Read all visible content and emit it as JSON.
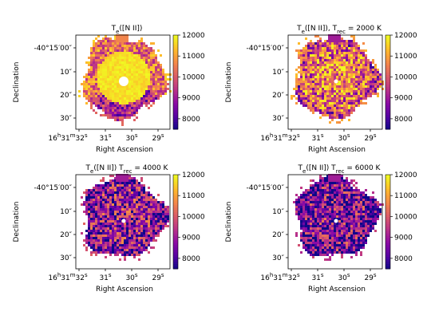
{
  "chart_data": [
    {
      "type": "heatmap",
      "title_main": "T",
      "title_sub": "e",
      "title_rest": "([N II])",
      "title_suffix": "",
      "xlabel": "Right Ascension",
      "ylabel": "Declination",
      "x_ticks": [
        {
          "h": "16",
          "m": "31",
          "s": "32"
        },
        {
          "s": "31"
        },
        {
          "s": "30"
        },
        {
          "s": "29"
        }
      ],
      "y_ticks": [
        "-40°15′00″",
        "10″",
        "20″",
        "30″"
      ],
      "colorbar": {
        "min": 7500,
        "max": 12000,
        "ticks": [
          8000,
          9000,
          10000,
          11000,
          12000
        ],
        "cmap": "plasma"
      },
      "mean_value": 11300
    },
    {
      "type": "heatmap",
      "title_main": "T",
      "title_sub": "e",
      "title_rest": "([N II]), T",
      "title_sub2": "rec",
      "title_suffix": " = 2000 K",
      "xlabel": "Right Ascension",
      "ylabel": "Declination",
      "x_ticks": [
        {
          "h": "16",
          "m": "31",
          "s": "32"
        },
        {
          "s": "31"
        },
        {
          "s": "30"
        },
        {
          "s": "29"
        }
      ],
      "y_ticks": [
        "-40°15′00″",
        "10″",
        "20″",
        "30″"
      ],
      "colorbar": {
        "min": 7500,
        "max": 12000,
        "ticks": [
          8000,
          9000,
          10000,
          11000,
          12000
        ],
        "cmap": "plasma"
      },
      "mean_value": 10200
    },
    {
      "type": "heatmap",
      "title_main": "T",
      "title_sub": "e",
      "title_rest": "([N II]) T",
      "title_sub2": "rec",
      "title_suffix": " = 4000 K",
      "xlabel": "Right Ascension",
      "ylabel": "Declination",
      "x_ticks": [
        {
          "h": "16",
          "m": "31",
          "s": "32"
        },
        {
          "s": "31"
        },
        {
          "s": "30"
        },
        {
          "s": "29"
        }
      ],
      "y_ticks": [
        "-40°15′00″",
        "10″",
        "20″",
        "30″"
      ],
      "colorbar": {
        "min": 7500,
        "max": 12000,
        "ticks": [
          8000,
          9000,
          10000,
          11000,
          12000
        ],
        "cmap": "plasma"
      },
      "mean_value": 9000
    },
    {
      "type": "heatmap",
      "title_main": "T",
      "title_sub": "e",
      "title_rest": "([N II]) T",
      "title_sub2": "rec",
      "title_suffix": " = 6000 K",
      "xlabel": "Right Ascension",
      "ylabel": "Declination",
      "x_ticks": [
        {
          "h": "16",
          "m": "31",
          "s": "32"
        },
        {
          "s": "31"
        },
        {
          "s": "30"
        },
        {
          "s": "29"
        }
      ],
      "y_ticks": [
        "-40°15′00″",
        "10″",
        "20″",
        "30″"
      ],
      "colorbar": {
        "min": 7500,
        "max": 12000,
        "ticks": [
          8000,
          9000,
          10000,
          11000,
          12000
        ],
        "cmap": "plasma"
      },
      "mean_value": 8700
    }
  ]
}
